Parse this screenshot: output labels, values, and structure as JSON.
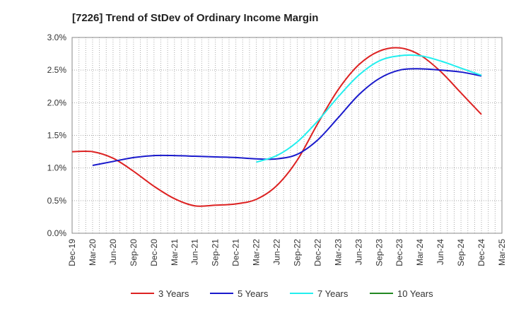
{
  "chart_data": {
    "type": "line",
    "title": "[7226]  Trend of StDev of Ordinary Income Margin",
    "xlabel": "",
    "ylabel": "",
    "ylim": [
      0,
      0.03
    ],
    "yticks": [
      0,
      0.005,
      0.01,
      0.015,
      0.02,
      0.025,
      0.03
    ],
    "ytick_labels": [
      "0.0%",
      "0.5%",
      "1.0%",
      "1.5%",
      "2.0%",
      "2.5%",
      "3.0%"
    ],
    "xticks": [
      "Dec-19",
      "Mar-20",
      "Jun-20",
      "Sep-20",
      "Dec-20",
      "Mar-21",
      "Jun-21",
      "Sep-21",
      "Dec-21",
      "Mar-22",
      "Jun-22",
      "Sep-22",
      "Dec-22",
      "Mar-23",
      "Jun-23",
      "Sep-23",
      "Dec-23",
      "Mar-24",
      "Jun-24",
      "Sep-24",
      "Dec-24",
      "Mar-25"
    ],
    "grid": true,
    "legend_position": "bottom",
    "series": [
      {
        "name": "3 Years",
        "color": "#dd2222",
        "x": [
          "Dec-19",
          "Mar-20",
          "Jun-20",
          "Sep-20",
          "Dec-20",
          "Mar-21",
          "Jun-21",
          "Sep-21",
          "Dec-21",
          "Mar-22",
          "Jun-22",
          "Sep-22",
          "Dec-22",
          "Mar-23",
          "Jun-23",
          "Sep-23",
          "Dec-23",
          "Mar-24",
          "Jun-24",
          "Sep-24",
          "Dec-24"
        ],
        "values": [
          0.0125,
          0.0125,
          0.0115,
          0.0095,
          0.0072,
          0.0053,
          0.0042,
          0.0043,
          0.0045,
          0.0052,
          0.0073,
          0.0112,
          0.0168,
          0.022,
          0.0258,
          0.0279,
          0.0284,
          0.0273,
          0.0248,
          0.0215,
          0.0182
        ]
      },
      {
        "name": "5 Years",
        "color": "#1a1acc",
        "x": [
          "Mar-20",
          "Jun-20",
          "Sep-20",
          "Dec-20",
          "Mar-21",
          "Jun-21",
          "Sep-21",
          "Dec-21",
          "Mar-22",
          "Jun-22",
          "Sep-22",
          "Dec-22",
          "Mar-23",
          "Jun-23",
          "Sep-23",
          "Dec-23",
          "Mar-24",
          "Jun-24",
          "Sep-24",
          "Dec-24"
        ],
        "values": [
          0.0104,
          0.011,
          0.0116,
          0.0119,
          0.0119,
          0.0118,
          0.0117,
          0.0116,
          0.0114,
          0.0114,
          0.0121,
          0.0143,
          0.0177,
          0.0212,
          0.0237,
          0.025,
          0.0252,
          0.025,
          0.0247,
          0.0241
        ]
      },
      {
        "name": "7 Years",
        "color": "#22eeee",
        "x": [
          "Mar-22",
          "Jun-22",
          "Sep-22",
          "Dec-22",
          "Mar-23",
          "Jun-23",
          "Sep-23",
          "Dec-23",
          "Mar-24",
          "Jun-24",
          "Sep-24",
          "Dec-24"
        ],
        "values": [
          0.0109,
          0.0119,
          0.014,
          0.0172,
          0.0209,
          0.0242,
          0.0264,
          0.0272,
          0.0272,
          0.0264,
          0.0253,
          0.0242
        ]
      },
      {
        "name": "10 Years",
        "color": "#228822",
        "x": [],
        "values": []
      }
    ]
  }
}
